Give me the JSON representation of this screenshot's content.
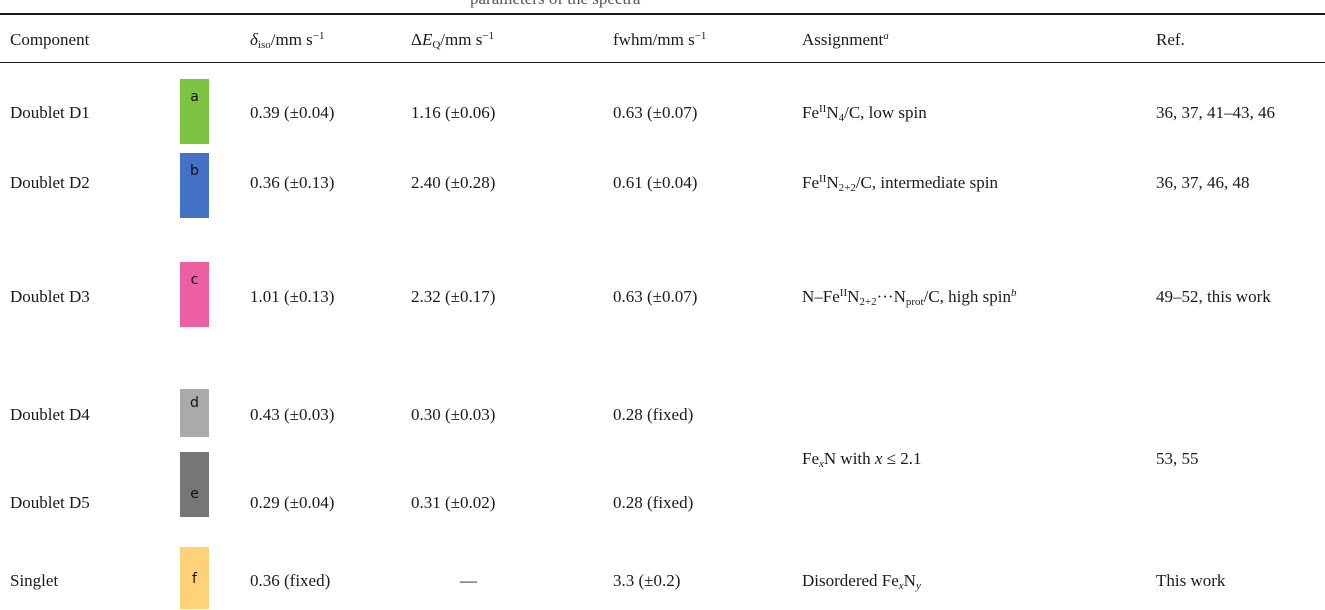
{
  "table": {
    "caption_fragment": "parameters of the spectra",
    "headers": {
      "component": "Component",
      "delta_iso": "δ",
      "delta_iso_sub": "iso",
      "delta_iso_unit": "/mm s",
      "delta_iso_exp": "−1",
      "deltaEQ": "ΔE",
      "deltaEQ_sub": "Q",
      "deltaEQ_unit": "/mm s",
      "deltaEQ_exp": "−1",
      "fwhm": "fwhm/mm s",
      "fwhm_exp": "−1",
      "assignment": "Assignment",
      "assignment_note": "a",
      "ref": "Ref."
    },
    "rows": [
      {
        "component": "Doublet D1",
        "label": "a",
        "color": "#7dc242",
        "delta_iso": "0.39 (±0.04)",
        "deltaEQ": "1.16 (±0.06)",
        "fwhm": "0.63 (±0.07)",
        "ref": "36, 37, 41–43, 46"
      },
      {
        "component": "Doublet D2",
        "label": "b",
        "color": "#4472c4",
        "delta_iso": "0.36 (±0.13)",
        "deltaEQ": "2.40 (±0.28)",
        "fwhm": "0.61 (±0.04)",
        "ref": "36, 37, 46, 48"
      },
      {
        "component": "Doublet D3",
        "label": "c",
        "color": "#ec5fa2",
        "delta_iso": "1.01 (±0.13)",
        "deltaEQ": "2.32 (±0.17)",
        "fwhm": "0.63 (±0.07)",
        "ref": "49–52, this work"
      },
      {
        "component": "Doublet D4",
        "label": "d",
        "color": "#aaaaaa",
        "delta_iso": "0.43 (±0.03)",
        "deltaEQ": "0.30 (±0.03)",
        "fwhm": "0.28 (fixed)",
        "ref": ""
      },
      {
        "component": "Doublet D5",
        "label": "e",
        "color": "#767676",
        "delta_iso": "0.29 (±0.04)",
        "deltaEQ": "0.31 (±0.02)",
        "fwhm": "0.28 (fixed)",
        "ref": "53, 55"
      },
      {
        "component": "Singlet",
        "label": "f",
        "color": "#ffd27a",
        "delta_iso": "0.36 (fixed)",
        "deltaEQ": "—",
        "fwhm": "3.3 (±0.2)",
        "ref": "This work"
      }
    ],
    "assignments": {
      "d1": {
        "fe": "Fe",
        "ox": "II",
        "n": "N",
        "n_sub": "4",
        "rest": "/C, low spin"
      },
      "d2": {
        "fe": "Fe",
        "ox": "II",
        "n": "N",
        "n_sub": "2+2",
        "rest": "/C, intermediate spin"
      },
      "d3": {
        "pre": "N–Fe",
        "ox": "II",
        "n": "N",
        "n_sub": "2+2",
        "mid": "···N",
        "prot_sub": "prot",
        "rest": "/C, high spin",
        "note": "b"
      },
      "d45": {
        "fe": "Fe",
        "x_sub": "x",
        "rest": "N with ",
        "x": "x",
        "rel": " ≤ 2.1"
      },
      "f": {
        "pre": "Disordered Fe",
        "x_sub": "x",
        "n": "N",
        "y_sub": "y"
      }
    }
  }
}
